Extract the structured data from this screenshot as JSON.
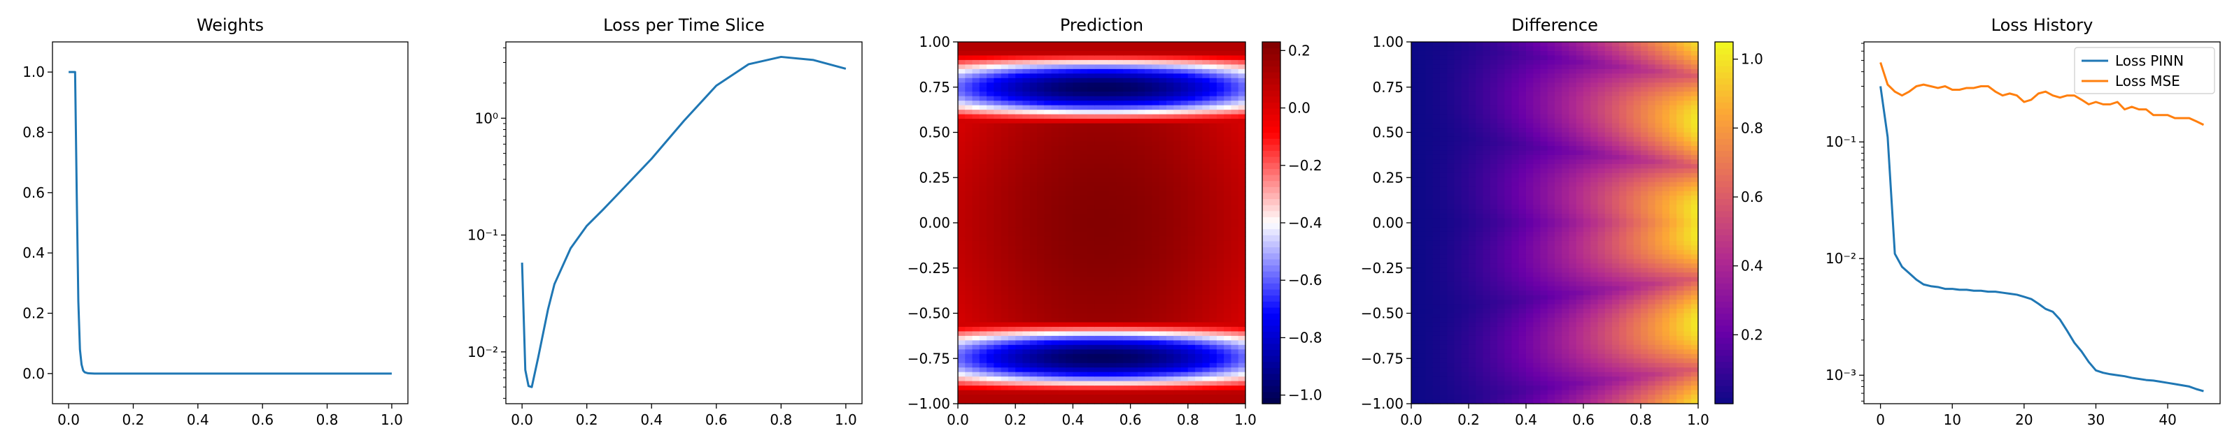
{
  "chart_data": [
    {
      "type": "line",
      "title": "Weights",
      "xlabel": "",
      "ylabel": "",
      "xlim": [
        -0.05,
        1.05
      ],
      "ylim": [
        -0.1,
        1.1
      ],
      "xticks": [
        0.0,
        0.2,
        0.4,
        0.6,
        0.8,
        1.0
      ],
      "xtick_labels": [
        "0.0",
        "0.2",
        "0.4",
        "0.6",
        "0.8",
        "1.0"
      ],
      "yticks": [
        0.0,
        0.2,
        0.4,
        0.6,
        0.8,
        1.0
      ],
      "ytick_labels": [
        "0.0",
        "0.2",
        "0.4",
        "0.6",
        "0.8",
        "1.0"
      ],
      "series": [
        {
          "color": "#1f77b4",
          "x": [
            0.0,
            0.01,
            0.02,
            0.025,
            0.03,
            0.035,
            0.04,
            0.045,
            0.05,
            0.06,
            0.08,
            0.1,
            0.2,
            0.4,
            0.6,
            0.8,
            1.0
          ],
          "y": [
            1.0,
            1.0,
            1.0,
            0.6,
            0.24,
            0.08,
            0.03,
            0.01,
            0.004,
            0.001,
            0.0,
            0.0,
            0.0,
            0.0,
            0.0,
            0.0,
            0.0
          ]
        }
      ]
    },
    {
      "type": "line",
      "title": "Loss per Time Slice",
      "xlabel": "",
      "ylabel": "",
      "yscale": "log",
      "xlim": [
        -0.05,
        1.05
      ],
      "ylim": [
        0.0036,
        4.5
      ],
      "xticks": [
        0.0,
        0.2,
        0.4,
        0.6,
        0.8,
        1.0
      ],
      "xtick_labels": [
        "0.0",
        "0.2",
        "0.4",
        "0.6",
        "0.8",
        "1.0"
      ],
      "yticks": [
        0.01,
        0.1,
        1.0
      ],
      "ytick_labels": [
        "10⁻²",
        "10⁻¹",
        "10⁰"
      ],
      "series": [
        {
          "color": "#1f77b4",
          "x": [
            0.0,
            0.01,
            0.02,
            0.03,
            0.05,
            0.08,
            0.1,
            0.15,
            0.2,
            0.25,
            0.3,
            0.4,
            0.5,
            0.6,
            0.7,
            0.8,
            0.9,
            1.0
          ],
          "y": [
            0.058,
            0.007,
            0.0051,
            0.005,
            0.009,
            0.023,
            0.038,
            0.077,
            0.12,
            0.165,
            0.23,
            0.45,
            0.95,
            1.9,
            2.9,
            3.35,
            3.15,
            2.65
          ]
        }
      ]
    },
    {
      "type": "heatmap",
      "title": "Prediction",
      "xlabel": "",
      "ylabel": "",
      "colormap": "seismic",
      "xlim": [
        0.0,
        1.0
      ],
      "ylim": [
        -1.0,
        1.0
      ],
      "xticks": [
        0.0,
        0.2,
        0.4,
        0.6,
        0.8,
        1.0
      ],
      "xtick_labels": [
        "0.0",
        "0.2",
        "0.4",
        "0.6",
        "0.8",
        "1.0"
      ],
      "yticks": [
        -1.0,
        -0.75,
        -0.5,
        -0.25,
        0.0,
        0.25,
        0.5,
        0.75,
        1.0
      ],
      "ytick_labels": [
        "−1.00",
        "−0.75",
        "−0.50",
        "−0.25",
        "0.00",
        "0.25",
        "0.50",
        "0.75",
        "1.00"
      ],
      "colorbar": {
        "vmin": -1.03,
        "vmax": 0.23,
        "ticks": [
          -1.0,
          -0.8,
          -0.6,
          -0.4,
          -0.2,
          0.0,
          0.2
        ],
        "tick_labels": [
          "−1.0",
          "−0.8",
          "−0.6",
          "−0.4",
          "−0.2",
          "0.0",
          "0.2"
        ],
        "colors": [
          "#00004c",
          "#0000ff",
          "#ffffff",
          "#ff0000",
          "#800000"
        ]
      }
    },
    {
      "type": "heatmap",
      "title": "Difference",
      "xlabel": "",
      "ylabel": "",
      "colormap": "plasma",
      "xlim": [
        0.0,
        1.0
      ],
      "ylim": [
        -1.0,
        1.0
      ],
      "xticks": [
        0.0,
        0.2,
        0.4,
        0.6,
        0.8,
        1.0
      ],
      "xtick_labels": [
        "0.0",
        "0.2",
        "0.4",
        "0.6",
        "0.8",
        "1.0"
      ],
      "yticks": [
        -1.0,
        -0.75,
        -0.5,
        -0.25,
        0.0,
        0.25,
        0.5,
        0.75,
        1.0
      ],
      "ytick_labels": [
        "−1.00",
        "−0.75",
        "−0.50",
        "−0.25",
        "0.00",
        "0.25",
        "0.50",
        "0.75",
        "1.00"
      ],
      "colorbar": {
        "vmin": 0.0,
        "vmax": 1.05,
        "ticks": [
          0.2,
          0.4,
          0.6,
          0.8,
          1.0
        ],
        "tick_labels": [
          "0.2",
          "0.4",
          "0.6",
          "0.8",
          "1.0"
        ],
        "colors": [
          "#0d0887",
          "#6a00a8",
          "#b12a90",
          "#e16462",
          "#fca636",
          "#f0f921"
        ]
      }
    },
    {
      "type": "line",
      "title": "Loss History",
      "xlabel": "",
      "ylabel": "",
      "yscale": "log",
      "xlim": [
        -2.3,
        47.3
      ],
      "ylim": [
        0.00057,
        0.72
      ],
      "xticks": [
        0,
        10,
        20,
        30,
        40
      ],
      "xtick_labels": [
        "0",
        "10",
        "20",
        "30",
        "40"
      ],
      "yticks": [
        0.001,
        0.01,
        0.1
      ],
      "ytick_labels": [
        "10⁻³",
        "10⁻²",
        "10⁻¹"
      ],
      "legend": "top-right",
      "series": [
        {
          "name": "Loss PINN",
          "color": "#1f77b4",
          "x": [
            0,
            1,
            2,
            3,
            4,
            5,
            6,
            7,
            8,
            9,
            10,
            11,
            12,
            13,
            14,
            15,
            16,
            17,
            18,
            19,
            20,
            21,
            22,
            23,
            24,
            25,
            26,
            27,
            28,
            29,
            30,
            31,
            32,
            33,
            34,
            35,
            36,
            37,
            38,
            39,
            40,
            41,
            42,
            43,
            44,
            45
          ],
          "y": [
            0.3,
            0.11,
            0.011,
            0.0085,
            0.0075,
            0.0066,
            0.006,
            0.0058,
            0.0057,
            0.0055,
            0.0055,
            0.0054,
            0.0054,
            0.0053,
            0.0053,
            0.0052,
            0.0052,
            0.0051,
            0.005,
            0.0049,
            0.0047,
            0.0045,
            0.0041,
            0.0037,
            0.0035,
            0.003,
            0.0024,
            0.0019,
            0.0016,
            0.0013,
            0.0011,
            0.00105,
            0.00102,
            0.001,
            0.00098,
            0.00095,
            0.00093,
            0.00091,
            0.0009,
            0.00088,
            0.00086,
            0.00084,
            0.00082,
            0.0008,
            0.00076,
            0.00073
          ]
        },
        {
          "name": "Loss MSE",
          "color": "#ff7f0e",
          "x": [
            0,
            1,
            2,
            3,
            4,
            5,
            6,
            7,
            8,
            9,
            10,
            11,
            12,
            13,
            14,
            15,
            16,
            17,
            18,
            19,
            20,
            21,
            22,
            23,
            24,
            25,
            26,
            27,
            28,
            29,
            30,
            31,
            32,
            33,
            34,
            35,
            36,
            37,
            38,
            39,
            40,
            41,
            42,
            43,
            44,
            45
          ],
          "y": [
            0.48,
            0.31,
            0.27,
            0.25,
            0.27,
            0.3,
            0.31,
            0.3,
            0.29,
            0.3,
            0.28,
            0.28,
            0.29,
            0.29,
            0.3,
            0.3,
            0.27,
            0.25,
            0.26,
            0.25,
            0.22,
            0.23,
            0.26,
            0.27,
            0.25,
            0.24,
            0.25,
            0.25,
            0.23,
            0.21,
            0.22,
            0.21,
            0.21,
            0.22,
            0.19,
            0.2,
            0.19,
            0.19,
            0.17,
            0.17,
            0.17,
            0.16,
            0.16,
            0.16,
            0.15,
            0.14
          ]
        }
      ]
    }
  ]
}
